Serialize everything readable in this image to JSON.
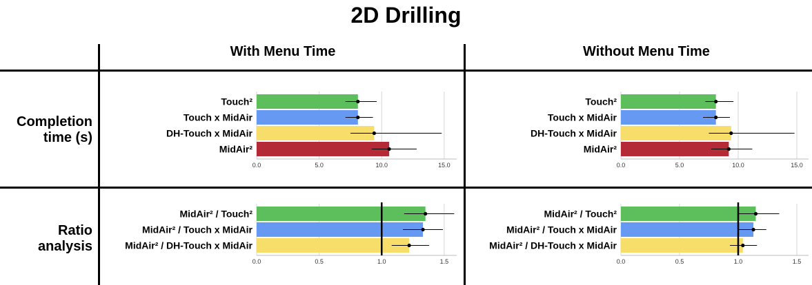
{
  "figure": {
    "title": "2D Drilling",
    "columns": [
      "With Menu Time",
      "Without Menu Time"
    ],
    "rows": [
      "Completion time (s)",
      "Ratio analysis"
    ]
  },
  "colors": {
    "green": "#5cbf5c",
    "blue": "#6699f2",
    "yellow": "#f7de6a",
    "red": "#b52a37"
  },
  "chart_data": [
    {
      "type": "bar",
      "panel": "completion-with-menu",
      "orientation": "horizontal",
      "categories": [
        "Touch²",
        "Touch x MidAir",
        "DH-Touch x MidAir",
        "MidAir²"
      ],
      "values": [
        8.1,
        8.1,
        9.4,
        10.6
      ],
      "error_low": [
        7.1,
        7.1,
        7.5,
        9.2
      ],
      "error_high": [
        9.6,
        9.3,
        14.8,
        12.8
      ],
      "colors": [
        "#5cbf5c",
        "#6699f2",
        "#f7de6a",
        "#b52a37"
      ],
      "xlim": [
        0,
        16
      ],
      "xticks": [
        0,
        5,
        10,
        15
      ],
      "xtick_labels": [
        "0.0",
        "5.0",
        "10.0",
        "15.0"
      ],
      "reference_line": null,
      "grid": true
    },
    {
      "type": "bar",
      "panel": "completion-without-menu",
      "orientation": "horizontal",
      "categories": [
        "Touch²",
        "Touch x MidAir",
        "DH-Touch x MidAir",
        "MidAir²"
      ],
      "values": [
        8.1,
        8.1,
        9.4,
        9.2
      ],
      "error_low": [
        7.2,
        7.0,
        7.5,
        7.7
      ],
      "error_high": [
        9.6,
        9.3,
        14.8,
        11.2
      ],
      "colors": [
        "#5cbf5c",
        "#6699f2",
        "#f7de6a",
        "#b52a37"
      ],
      "xlim": [
        0,
        16
      ],
      "xticks": [
        0,
        5,
        10,
        15
      ],
      "xtick_labels": [
        "0.0",
        "5.0",
        "10.0",
        "15.0"
      ],
      "reference_line": null,
      "grid": true
    },
    {
      "type": "bar",
      "panel": "ratio-with-menu",
      "orientation": "horizontal",
      "categories": [
        "MidAir² / Touch²",
        "MidAir² / Touch x MidAir",
        "MidAir² / DH-Touch x MidAir"
      ],
      "values": [
        1.35,
        1.33,
        1.22
      ],
      "error_low": [
        1.18,
        1.17,
        1.08
      ],
      "error_high": [
        1.58,
        1.49,
        1.38
      ],
      "colors": [
        "#5cbf5c",
        "#6699f2",
        "#f7de6a"
      ],
      "xlim": [
        0,
        1.6
      ],
      "xticks": [
        0,
        0.5,
        1.0,
        1.5
      ],
      "xtick_labels": [
        "0.0",
        "0.5",
        "1.0",
        "1.5"
      ],
      "reference_line": 1.0,
      "grid": true
    },
    {
      "type": "bar",
      "panel": "ratio-without-menu",
      "orientation": "horizontal",
      "categories": [
        "MidAir² / Touch²",
        "MidAir² / Touch x MidAir",
        "MidAir² / DH-Touch x MidAir"
      ],
      "values": [
        1.15,
        1.13,
        1.04
      ],
      "error_low": [
        1.0,
        1.0,
        0.93
      ],
      "error_high": [
        1.35,
        1.24,
        1.16
      ],
      "colors": [
        "#5cbf5c",
        "#6699f2",
        "#f7de6a"
      ],
      "xlim": [
        0,
        1.6
      ],
      "xticks": [
        0,
        0.5,
        1.0,
        1.5
      ],
      "xtick_labels": [
        "0.0",
        "0.5",
        "1.0",
        "1.5"
      ],
      "reference_line": 1.0,
      "grid": true
    }
  ]
}
